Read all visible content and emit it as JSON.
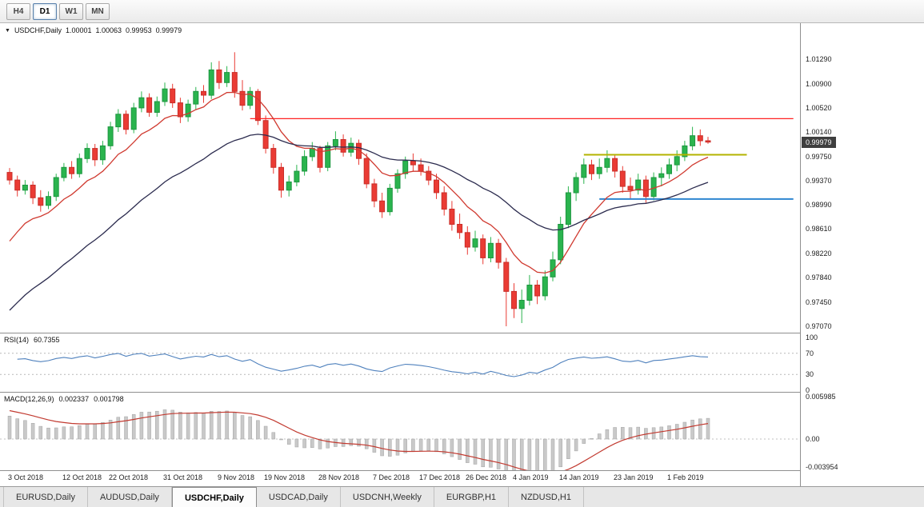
{
  "toolbar": {
    "timeframes": [
      {
        "label": "H4",
        "active": false
      },
      {
        "label": "D1",
        "active": true
      },
      {
        "label": "W1",
        "active": false
      },
      {
        "label": "MN",
        "active": false
      }
    ]
  },
  "chart": {
    "title": {
      "symbol": "USDCHF,Daily",
      "open": "1.00001",
      "high": "1.00063",
      "low": "0.99953",
      "close": "0.99979"
    },
    "price_badge": "0.99979",
    "y_axis": [
      {
        "text": "1.01290",
        "value": 1.0129
      },
      {
        "text": "1.00900",
        "value": 1.009
      },
      {
        "text": "1.00520",
        "value": 1.0052
      },
      {
        "text": "1.00140",
        "value": 1.0014
      },
      {
        "text": "0.99750",
        "value": 0.9975
      },
      {
        "text": "0.99370",
        "value": 0.9937
      },
      {
        "text": "0.98990",
        "value": 0.9899
      },
      {
        "text": "0.98610",
        "value": 0.9861
      },
      {
        "text": "0.98220",
        "value": 0.9822
      },
      {
        "text": "0.97840",
        "value": 0.9784
      },
      {
        "text": "0.97450",
        "value": 0.9745
      },
      {
        "text": "0.97070",
        "value": 0.9707
      }
    ]
  },
  "chart_data": {
    "type": "candlestick",
    "symbol": "USDCHF",
    "timeframe": "Daily",
    "colors": {
      "bull": "#2ab44e",
      "bull_border": "#1d9640",
      "bear": "#ea3b34",
      "bear_border": "#c92e28",
      "histogram": "#c9c9c9",
      "histogram_border": "#a3a3a3",
      "signal_line": "#c23b31"
    },
    "candles": [
      [
        0.995,
        0.9957,
        0.9931,
        0.9938
      ],
      [
        0.9938,
        0.9945,
        0.9912,
        0.9922
      ],
      [
        0.9922,
        0.9938,
        0.9915,
        0.993
      ],
      [
        0.993,
        0.9936,
        0.99,
        0.991
      ],
      [
        0.991,
        0.9922,
        0.9888,
        0.9898
      ],
      [
        0.9898,
        0.992,
        0.9892,
        0.9912
      ],
      [
        0.9912,
        0.9948,
        0.9905,
        0.9942
      ],
      [
        0.9942,
        0.9965,
        0.9936,
        0.9958
      ],
      [
        0.9958,
        0.9968,
        0.994,
        0.9948
      ],
      [
        0.9948,
        0.998,
        0.9942,
        0.9972
      ],
      [
        0.9972,
        0.9996,
        0.9965,
        0.9988
      ],
      [
        0.9988,
        0.9995,
        0.996,
        0.997
      ],
      [
        0.997,
        1.0,
        0.9962,
        0.9992
      ],
      [
        0.9992,
        1.003,
        0.9986,
        1.0022
      ],
      [
        1.0022,
        1.005,
        1.0014,
        1.0042
      ],
      [
        1.0042,
        1.0048,
        1.001,
        1.0018
      ],
      [
        1.0018,
        1.006,
        1.0012,
        1.0052
      ],
      [
        1.0052,
        1.0078,
        1.0045,
        1.0068
      ],
      [
        1.0068,
        1.0075,
        1.0038,
        1.0045
      ],
      [
        1.0045,
        1.007,
        1.0038,
        1.0062
      ],
      [
        1.0062,
        1.0092,
        1.0055,
        1.0082
      ],
      [
        1.0082,
        1.009,
        1.0052,
        1.006
      ],
      [
        1.006,
        1.0068,
        1.0028,
        1.0038
      ],
      [
        1.0038,
        1.0065,
        1.003,
        1.0058
      ],
      [
        1.0058,
        1.0085,
        1.005,
        1.0078
      ],
      [
        1.0078,
        1.0088,
        1.006,
        1.0072
      ],
      [
        1.0072,
        1.0124,
        1.0066,
        1.0112
      ],
      [
        1.0112,
        1.0126,
        1.0082,
        1.0092
      ],
      [
        1.0092,
        1.0118,
        1.0085,
        1.0108
      ],
      [
        1.0108,
        1.014,
        1.0068,
        1.0078
      ],
      [
        1.0078,
        1.0096,
        1.0048,
        1.0056
      ],
      [
        1.0056,
        1.0085,
        1.005,
        1.0078
      ],
      [
        1.0078,
        1.0082,
        1.0025,
        1.0032
      ],
      [
        1.0032,
        1.004,
        0.998,
        0.9988
      ],
      [
        0.9988,
        0.9995,
        0.9948,
        0.9958
      ],
      [
        0.9958,
        0.9965,
        0.991,
        0.9922
      ],
      [
        0.9922,
        0.9945,
        0.9912,
        0.9935
      ],
      [
        0.9935,
        0.9962,
        0.9928,
        0.9952
      ],
      [
        0.9952,
        0.9985,
        0.9945,
        0.9975
      ],
      [
        0.9975,
        0.9998,
        0.9968,
        0.9988
      ],
      [
        0.9988,
        0.9992,
        0.995,
        0.9958
      ],
      [
        0.9958,
        0.9998,
        0.9952,
        0.9992
      ],
      [
        0.9992,
        1.0015,
        0.9985,
        1.0002
      ],
      [
        1.0002,
        1.001,
        0.9975,
        0.9982
      ],
      [
        0.9982,
        1.0005,
        0.9975,
        0.9996
      ],
      [
        0.9996,
        1.0002,
        0.9962,
        0.9972
      ],
      [
        0.9972,
        0.998,
        0.9925,
        0.9932
      ],
      [
        0.9932,
        0.994,
        0.9895,
        0.9905
      ],
      [
        0.9905,
        0.9918,
        0.9878,
        0.9888
      ],
      [
        0.9888,
        0.9932,
        0.9882,
        0.9925
      ],
      [
        0.9925,
        0.9955,
        0.9918,
        0.9948
      ],
      [
        0.9948,
        0.9975,
        0.994,
        0.9968
      ],
      [
        0.9968,
        0.998,
        0.9952,
        0.9962
      ],
      [
        0.9962,
        0.9972,
        0.9945,
        0.9952
      ],
      [
        0.9952,
        0.996,
        0.993,
        0.9938
      ],
      [
        0.9938,
        0.9948,
        0.9908,
        0.9918
      ],
      [
        0.9918,
        0.9928,
        0.9882,
        0.9892
      ],
      [
        0.9892,
        0.9905,
        0.9858,
        0.9868
      ],
      [
        0.9868,
        0.9885,
        0.9845,
        0.9855
      ],
      [
        0.9855,
        0.9865,
        0.982,
        0.9832
      ],
      [
        0.9832,
        0.9858,
        0.9825,
        0.9845
      ],
      [
        0.9845,
        0.9852,
        0.9805,
        0.9815
      ],
      [
        0.9815,
        0.9848,
        0.9808,
        0.9838
      ],
      [
        0.9838,
        0.9845,
        0.9798,
        0.9808
      ],
      [
        0.9808,
        0.9815,
        0.9707,
        0.9762
      ],
      [
        0.9762,
        0.9775,
        0.972,
        0.9735
      ],
      [
        0.9735,
        0.9765,
        0.9712,
        0.9748
      ],
      [
        0.9748,
        0.9788,
        0.974,
        0.9772
      ],
      [
        0.9772,
        0.978,
        0.9742,
        0.9755
      ],
      [
        0.9755,
        0.9795,
        0.9748,
        0.9785
      ],
      [
        0.9785,
        0.9825,
        0.9778,
        0.9812
      ],
      [
        0.9812,
        0.988,
        0.9805,
        0.9868
      ],
      [
        0.9868,
        0.9928,
        0.9862,
        0.9918
      ],
      [
        0.9918,
        0.995,
        0.9905,
        0.9942
      ],
      [
        0.9942,
        0.9972,
        0.9932,
        0.9962
      ],
      [
        0.9962,
        0.997,
        0.9938,
        0.9948
      ],
      [
        0.9948,
        0.9972,
        0.994,
        0.9958
      ],
      [
        0.9958,
        0.9985,
        0.995,
        0.9972
      ],
      [
        0.9972,
        0.9978,
        0.9942,
        0.9952
      ],
      [
        0.9952,
        0.996,
        0.9918,
        0.9928
      ],
      [
        0.9928,
        0.9942,
        0.9908,
        0.9922
      ],
      [
        0.9922,
        0.9948,
        0.9915,
        0.9938
      ],
      [
        0.9938,
        0.9945,
        0.9902,
        0.9912
      ],
      [
        0.9912,
        0.995,
        0.9906,
        0.9942
      ],
      [
        0.9942,
        0.9958,
        0.9928,
        0.9948
      ],
      [
        0.9948,
        0.9972,
        0.994,
        0.9962
      ],
      [
        0.9962,
        0.9985,
        0.9952,
        0.9975
      ],
      [
        0.9975,
        1.0,
        0.9968,
        0.9992
      ],
      [
        0.9992,
        1.0022,
        0.9985,
        1.0008
      ],
      [
        1.0008,
        1.0018,
        0.9992,
        1.0
      ],
      [
        1.00001,
        1.00063,
        0.99953,
        0.99979
      ]
    ],
    "x_labels": [
      {
        "text": "3 Oct 2018",
        "i": 0
      },
      {
        "text": "12 Oct 2018",
        "i": 7
      },
      {
        "text": "22 Oct 2018",
        "i": 13
      },
      {
        "text": "31 Oct 2018",
        "i": 20
      },
      {
        "text": "9 Nov 2018",
        "i": 27
      },
      {
        "text": "19 Nov 2018",
        "i": 33
      },
      {
        "text": "28 Nov 2018",
        "i": 40
      },
      {
        "text": "7 Dec 2018",
        "i": 47
      },
      {
        "text": "17 Dec 2018",
        "i": 53
      },
      {
        "text": "26 Dec 2018",
        "i": 59
      },
      {
        "text": "4 Jan 2019",
        "i": 65
      },
      {
        "text": "14 Jan 2019",
        "i": 71
      },
      {
        "text": "23 Jan 2019",
        "i": 78
      },
      {
        "text": "1 Feb 2019",
        "i": 85
      }
    ],
    "hlines": [
      {
        "name": "resistance-line-red",
        "price": 1.0035,
        "color": "#ff2222",
        "width": 1.2,
        "from_index": 31,
        "to_index": 101
      },
      {
        "name": "resistance-line-yellow",
        "price": 0.9978,
        "color": "#b3b300",
        "width": 2,
        "from_index": 74,
        "to_index": 95
      },
      {
        "name": "support-line-blue",
        "price": 0.9908,
        "color": "#2e86d0",
        "width": 2,
        "from_index": 76,
        "to_index": 101
      }
    ],
    "overlays": [
      {
        "name": "ma-fast-red-line",
        "period": 10,
        "seed": 0.982,
        "color": "#d03a30"
      },
      {
        "name": "ma-slow-dark-line",
        "period": 30,
        "seed": 0.9718,
        "color": "#2b2b4e"
      }
    ]
  },
  "indicators": {
    "rsi": {
      "label": "RSI(14)",
      "value": "60.7355",
      "period": 14,
      "color": "#4f81bd",
      "guides": [
        70,
        30
      ],
      "scale": [
        {
          "text": "100",
          "v": 100
        },
        {
          "text": "70",
          "v": 70
        },
        {
          "text": "30",
          "v": 30
        },
        {
          "text": "0",
          "v": 0
        }
      ]
    },
    "macd": {
      "label": "MACD(12,26,9)",
      "value_macd": "0.002337",
      "value_signal": "0.001798",
      "fast": 12,
      "slow": 26,
      "signal": 9,
      "seed_fast": 0.9938,
      "seed_slow": 0.9903,
      "seed_signal": 0.0042,
      "scale": [
        {
          "text": "0.005985",
          "v": 0.005985
        },
        {
          "text": "0.00",
          "v": 0
        },
        {
          "text": "-0.003954",
          "v": -0.003954
        }
      ]
    }
  },
  "tabs": [
    {
      "label": "EURUSD,Daily",
      "active": false
    },
    {
      "label": "AUDUSD,Daily",
      "active": false
    },
    {
      "label": "USDCHF,Daily",
      "active": true
    },
    {
      "label": "USDCAD,Daily",
      "active": false
    },
    {
      "label": "USDCNH,Weekly",
      "active": false
    },
    {
      "label": "EURGBP,H1",
      "active": false
    },
    {
      "label": "NZDUSD,H1",
      "active": false
    }
  ]
}
